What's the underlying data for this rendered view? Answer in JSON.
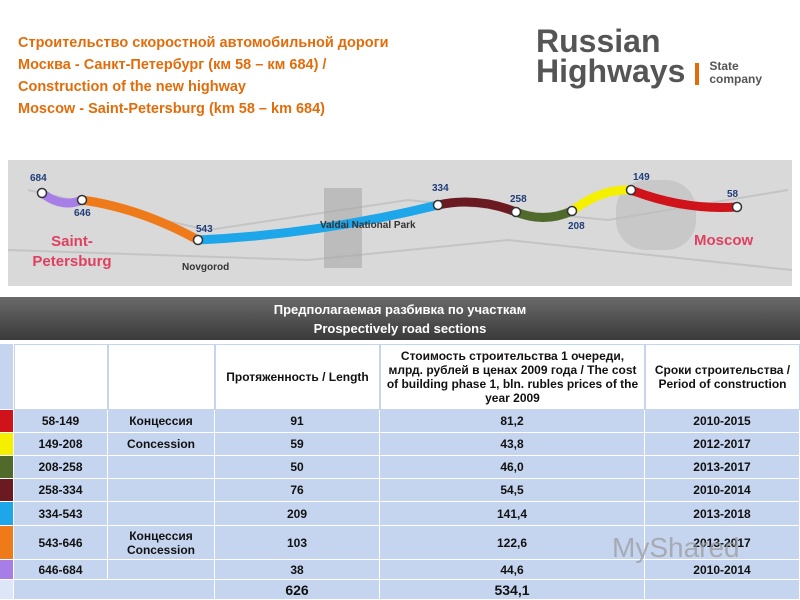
{
  "header": {
    "title": [
      "Строительство скоростной автомобильной дороги",
      "Москва - Санкт-Петербург (км 58 – км 684) /",
      "Construction of the new highway",
      "Moscow - Saint-Petersburg (km 58 – km 684)"
    ]
  },
  "logo": {
    "line1": "Russian",
    "line2": "Highways",
    "tag1": "State",
    "tag2": "company"
  },
  "map": {
    "markers": [
      "684",
      "646",
      "543",
      "334",
      "258",
      "208",
      "149",
      "58"
    ],
    "places": {
      "spb": [
        "Saint-",
        "Petersburg"
      ],
      "novgorod": "Novgorod",
      "valdai": "Valdai National Park",
      "moscow": "Moscow"
    }
  },
  "table": {
    "title": [
      "Предполагаемая разбивка по участкам",
      "Prospectively road sections"
    ],
    "headers": {
      "length": "Протяженность / Length",
      "cost": "Стоимость строительства 1 очереди, млрд. рублей в ценах 2009 года / The cost of building phase 1, bln. rubles prices of the year 2009",
      "period": "Сроки строительства / Period of construction"
    },
    "rows": [
      {
        "color": "#d0121b",
        "section": "58-149",
        "concession": "Концессия",
        "length": "91",
        "cost": "81,2",
        "period": "2010-2015"
      },
      {
        "color": "#f4f000",
        "section": "149-208",
        "concession": "Concession",
        "length": "59",
        "cost": "43,8",
        "period": "2012-2017"
      },
      {
        "color": "#4f6a2a",
        "section": "208-258",
        "length": "50",
        "cost": "46,0",
        "period": "2013-2017"
      },
      {
        "color": "#6b1a22",
        "section": "258-334",
        "length": "76",
        "cost": "54,5",
        "period": "2010-2014"
      },
      {
        "color": "#1ea6ea",
        "section": "334-543",
        "length": "209",
        "cost": "141,4",
        "period": "2013-2018"
      },
      {
        "color": "#ee7a1a",
        "section": "543-646",
        "concession": "Концессия Concession",
        "length": "103",
        "cost": "122,6",
        "period": "2013-2017"
      },
      {
        "color": "#a77ee8",
        "section": "646-684",
        "length": "38",
        "cost": "44,6",
        "period": "2010-2014"
      }
    ],
    "total": {
      "length": "626",
      "cost": "534,1"
    }
  },
  "watermark": "MyShared"
}
